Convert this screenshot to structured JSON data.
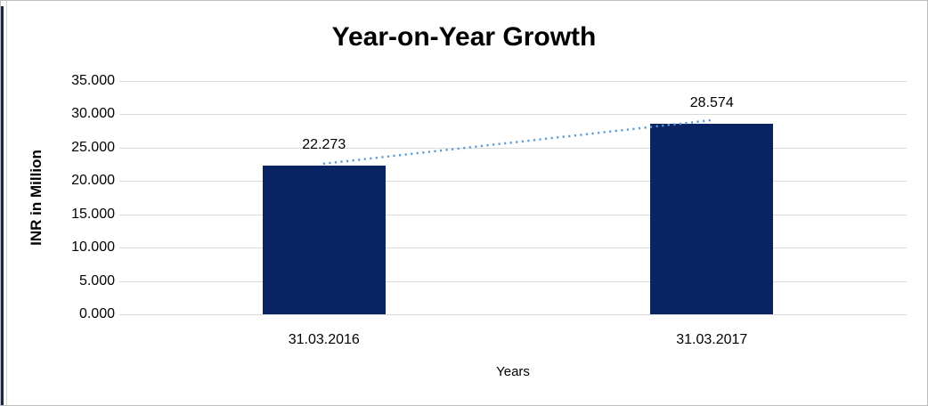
{
  "chart_data": {
    "type": "bar",
    "title": "Year-on-Year Growth",
    "categories": [
      "31.03.2016",
      "31.03.2017"
    ],
    "values": [
      22.273,
      28.574
    ],
    "data_labels": [
      "22.273",
      "28.574"
    ],
    "xlabel": "Years",
    "ylabel": "INR in Million",
    "ylim": [
      0,
      35
    ],
    "ytick_interval": 5,
    "ytick_labels": [
      "0.000",
      "5.000",
      "10.000",
      "15.000",
      "20.000",
      "25.000",
      "30.000",
      "35.000"
    ],
    "grid": true,
    "legend": "none",
    "bar_color": "#0a2463",
    "gridline_color": "#d9d9d9",
    "trendline": {
      "type": "linear",
      "style": "dotted",
      "color": "#5b9bd5"
    }
  },
  "frame": {
    "left_edge_color": "#152a52",
    "border_color": "#bdbdbd"
  }
}
